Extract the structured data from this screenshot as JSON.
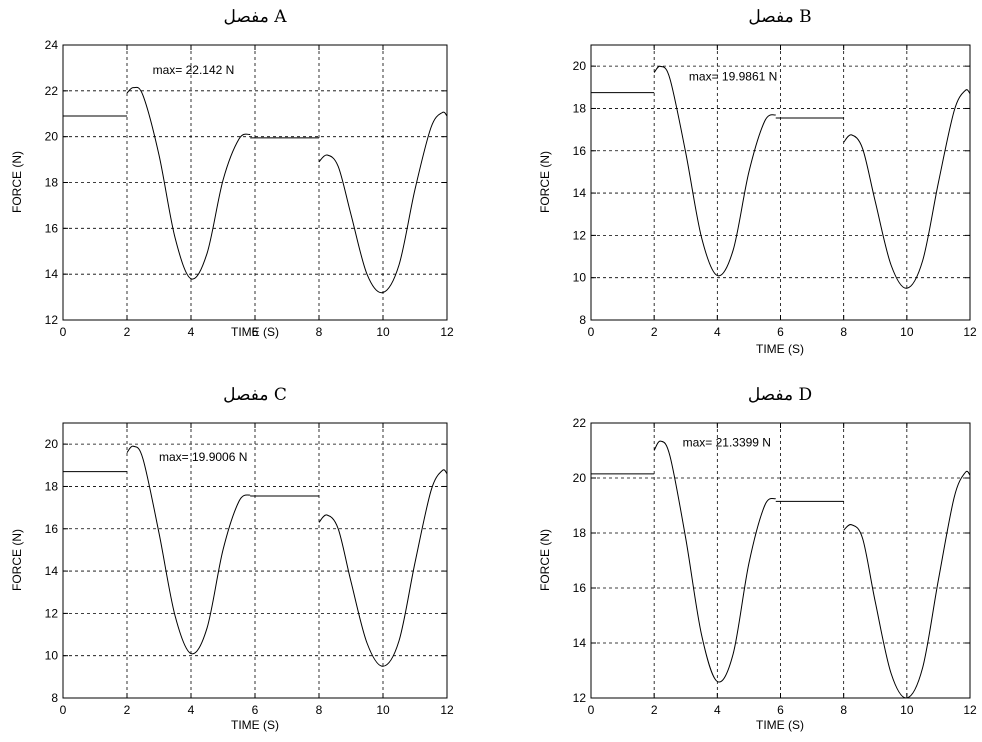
{
  "chart_data": [
    {
      "type": "line",
      "title": "مفصل A",
      "xlabel": "TIME  (S)",
      "ylabel": "FORCE (N)",
      "xlim": [
        0,
        12
      ],
      "ylim": [
        12,
        24
      ],
      "xticks": [
        0,
        2,
        4,
        6,
        8,
        10,
        12
      ],
      "yticks": [
        12,
        14,
        16,
        18,
        20,
        22,
        24
      ],
      "grid": true,
      "annotation": {
        "text": "max= 22.142 N",
        "x": 2.8,
        "y": 22.9
      },
      "series": [
        {
          "x": [
            0,
            2
          ],
          "y": [
            20.9,
            20.9
          ]
        },
        {
          "x": [
            2,
            2.2,
            2.5,
            3.0,
            3.5,
            4.0,
            4.5,
            5.0,
            5.5,
            5.85
          ],
          "y": [
            21.9,
            22.14,
            21.8,
            19.2,
            15.6,
            13.8,
            14.9,
            18.1,
            19.9,
            20.1
          ]
        },
        {
          "x": [
            5.85,
            8
          ],
          "y": [
            19.95,
            19.95
          ]
        },
        {
          "x": [
            8,
            8.25,
            8.6,
            9.0,
            9.5,
            10.0,
            10.5,
            11.0,
            11.5,
            11.85,
            12
          ],
          "y": [
            18.9,
            19.2,
            18.7,
            16.6,
            14.0,
            13.2,
            14.4,
            17.7,
            20.4,
            21.05,
            20.9
          ]
        }
      ]
    },
    {
      "type": "line",
      "title": "مفصل B",
      "xlabel": "TIME  (S)",
      "ylabel": "FORCE (N)",
      "xlim": [
        0,
        12
      ],
      "ylim": [
        8,
        21
      ],
      "xticks": [
        0,
        2,
        4,
        6,
        8,
        10,
        12
      ],
      "yticks": [
        8,
        10,
        12,
        14,
        16,
        18,
        20
      ],
      "grid": true,
      "annotation": {
        "text": "max= 19.9861 N",
        "x": 3.1,
        "y": 19.5
      },
      "series": [
        {
          "x": [
            0,
            2
          ],
          "y": [
            18.75,
            18.75
          ]
        },
        {
          "x": [
            2,
            2.2,
            2.5,
            3.0,
            3.5,
            4.0,
            4.5,
            5.0,
            5.5,
            5.85
          ],
          "y": [
            19.7,
            19.99,
            19.4,
            15.9,
            11.9,
            10.1,
            11.3,
            15.0,
            17.4,
            17.7
          ]
        },
        {
          "x": [
            5.85,
            8
          ],
          "y": [
            17.55,
            17.55
          ]
        },
        {
          "x": [
            8,
            8.25,
            8.6,
            9.0,
            9.5,
            10.0,
            10.5,
            11.0,
            11.5,
            11.85,
            12
          ],
          "y": [
            16.4,
            16.75,
            16.1,
            13.6,
            10.6,
            9.5,
            10.8,
            14.5,
            17.9,
            18.85,
            18.7
          ]
        }
      ]
    },
    {
      "type": "line",
      "title": "مفصل C",
      "xlabel": "TIME  (S)",
      "ylabel": "FORCE (N)",
      "xlim": [
        0,
        12
      ],
      "ylim": [
        8,
        21
      ],
      "xticks": [
        0,
        2,
        4,
        6,
        8,
        10,
        12
      ],
      "yticks": [
        8,
        10,
        12,
        14,
        16,
        18,
        20
      ],
      "grid": true,
      "annotation": {
        "text": "max= 19.9006 N",
        "x": 3.0,
        "y": 19.4
      },
      "series": [
        {
          "x": [
            0,
            2
          ],
          "y": [
            18.7,
            18.7
          ]
        },
        {
          "x": [
            2,
            2.2,
            2.5,
            3.0,
            3.5,
            4.0,
            4.5,
            5.0,
            5.5,
            5.85
          ],
          "y": [
            19.6,
            19.9,
            19.3,
            15.8,
            11.9,
            10.1,
            11.3,
            15.0,
            17.3,
            17.6
          ]
        },
        {
          "x": [
            5.85,
            8
          ],
          "y": [
            17.55,
            17.55
          ]
        },
        {
          "x": [
            8,
            8.25,
            8.6,
            9.0,
            9.5,
            10.0,
            10.5,
            11.0,
            11.5,
            11.85,
            12
          ],
          "y": [
            16.3,
            16.65,
            16.0,
            13.5,
            10.6,
            9.5,
            10.7,
            14.4,
            17.8,
            18.75,
            18.6
          ]
        }
      ]
    },
    {
      "type": "line",
      "title": "مفصل D",
      "xlabel": "TIME  (S)",
      "ylabel": "FORCE (N)",
      "xlim": [
        0,
        12
      ],
      "ylim": [
        12,
        22
      ],
      "xticks": [
        0,
        2,
        4,
        6,
        8,
        10,
        12
      ],
      "yticks": [
        12,
        14,
        16,
        18,
        20,
        22
      ],
      "grid": true,
      "annotation": {
        "text": "max= 21.3399 N",
        "x": 2.9,
        "y": 21.3
      },
      "series": [
        {
          "x": [
            0,
            2
          ],
          "y": [
            20.15,
            20.15
          ]
        },
        {
          "x": [
            2,
            2.2,
            2.5,
            3.0,
            3.5,
            4.0,
            4.5,
            5.0,
            5.5,
            5.85
          ],
          "y": [
            21.0,
            21.34,
            20.8,
            17.8,
            14.3,
            12.6,
            13.6,
            16.9,
            19.0,
            19.25
          ]
        },
        {
          "x": [
            5.85,
            8
          ],
          "y": [
            19.15,
            19.15
          ]
        },
        {
          "x": [
            8,
            8.25,
            8.6,
            9.0,
            9.5,
            10.0,
            10.5,
            11.0,
            11.5,
            11.85,
            12
          ],
          "y": [
            18.1,
            18.3,
            17.8,
            15.5,
            12.9,
            12.0,
            13.1,
            16.3,
            19.3,
            20.2,
            20.1
          ]
        }
      ]
    }
  ]
}
